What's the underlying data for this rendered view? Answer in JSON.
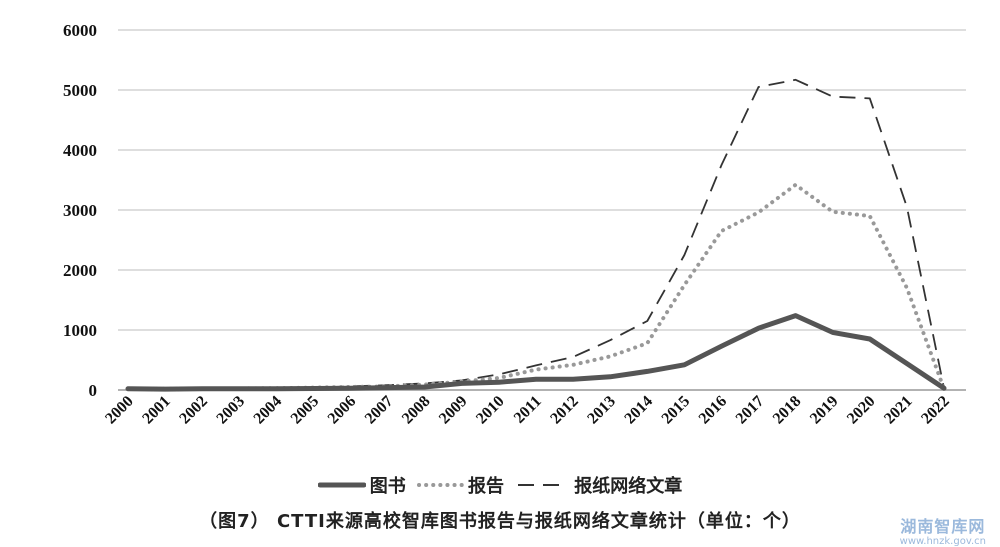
{
  "chart_data": {
    "type": "line",
    "title": "",
    "xlabel": "",
    "ylabel": "",
    "ylim": [
      0,
      6000
    ],
    "yticks": [
      0,
      1000,
      2000,
      3000,
      4000,
      5000,
      6000
    ],
    "grid": true,
    "legend_position": "bottom",
    "categories": [
      "2000",
      "2001",
      "2002",
      "2003",
      "2004",
      "2005",
      "2006",
      "2007",
      "2008",
      "2009",
      "2010",
      "2011",
      "2012",
      "2013",
      "2014",
      "2015",
      "2016",
      "2017",
      "2018",
      "2019",
      "2020",
      "2021",
      "2022"
    ],
    "series": [
      {
        "name": "图书",
        "style": "solid-thick",
        "color": "#555555",
        "values": [
          20,
          15,
          20,
          20,
          20,
          25,
          30,
          40,
          50,
          110,
          130,
          180,
          180,
          220,
          310,
          420,
          730,
          1030,
          1240,
          960,
          850,
          440,
          30
        ]
      },
      {
        "name": "报告",
        "style": "dotted",
        "color": "#999999",
        "values": [
          20,
          20,
          20,
          25,
          30,
          40,
          50,
          60,
          90,
          140,
          200,
          340,
          420,
          560,
          780,
          1750,
          2650,
          2960,
          3420,
          2970,
          2900,
          1700,
          20
        ]
      },
      {
        "name": "报纸网络文章",
        "style": "dashed",
        "color": "#333333",
        "values": [
          20,
          20,
          20,
          25,
          30,
          40,
          60,
          80,
          110,
          160,
          260,
          410,
          550,
          830,
          1150,
          2250,
          3750,
          5050,
          5170,
          4890,
          4860,
          3050,
          30
        ]
      }
    ]
  },
  "caption": "（图7） CTTI来源高校智库图书报告与报纸网络文章统计（单位：个）",
  "watermark": {
    "name": "湖南智库网",
    "url": "www.hnzk.gov.cn"
  }
}
